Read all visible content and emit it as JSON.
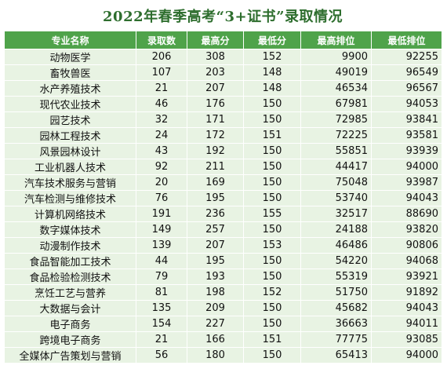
{
  "title": "2022年春季高考“3+证书”录取情况",
  "headers": [
    "专业名称",
    "录取数",
    "最高分",
    "最低分",
    "最高排位",
    "最低排位"
  ],
  "rows": [
    [
      "动物医学",
      "206",
      "308",
      "152",
      "9900",
      "92255"
    ],
    [
      "畜牧兽医",
      "107",
      "203",
      "148",
      "49019",
      "96549"
    ],
    [
      "水产养殖技术",
      "21",
      "207",
      "148",
      "46534",
      "96567"
    ],
    [
      "现代农业技术",
      "46",
      "176",
      "150",
      "67981",
      "94053"
    ],
    [
      "园艺技术",
      "32",
      "171",
      "150",
      "72985",
      "93841"
    ],
    [
      "园林工程技术",
      "24",
      "172",
      "151",
      "72225",
      "93581"
    ],
    [
      "风景园林设计",
      "43",
      "192",
      "150",
      "55851",
      "93939"
    ],
    [
      "工业机器人技术",
      "92",
      "211",
      "150",
      "44417",
      "94000"
    ],
    [
      "汽车技术服务与营销",
      "20",
      "169",
      "150",
      "75048",
      "93987"
    ],
    [
      "汽车检测与维修技术",
      "76",
      "195",
      "150",
      "53740",
      "94043"
    ],
    [
      "计算机网络技术",
      "191",
      "236",
      "155",
      "32517",
      "88690"
    ],
    [
      "数字媒体技术",
      "149",
      "257",
      "150",
      "24188",
      "93820"
    ],
    [
      "动漫制作技术",
      "139",
      "207",
      "153",
      "46486",
      "90806"
    ],
    [
      "食品智能加工技术",
      "44",
      "195",
      "150",
      "54220",
      "94068"
    ],
    [
      "食品检验检测技术",
      "79",
      "193",
      "150",
      "55319",
      "93921"
    ],
    [
      "烹饪工艺与营养",
      "81",
      "198",
      "152",
      "51750",
      "91892"
    ],
    [
      "大数据与会计",
      "135",
      "209",
      "150",
      "45682",
      "94043"
    ],
    [
      "电子商务",
      "154",
      "227",
      "150",
      "36663",
      "94011"
    ],
    [
      "跨境电子商务",
      "21",
      "166",
      "151",
      "77775",
      "93085"
    ],
    [
      "全媒体广告策划与营销",
      "56",
      "180",
      "150",
      "65413",
      "94000"
    ]
  ]
}
